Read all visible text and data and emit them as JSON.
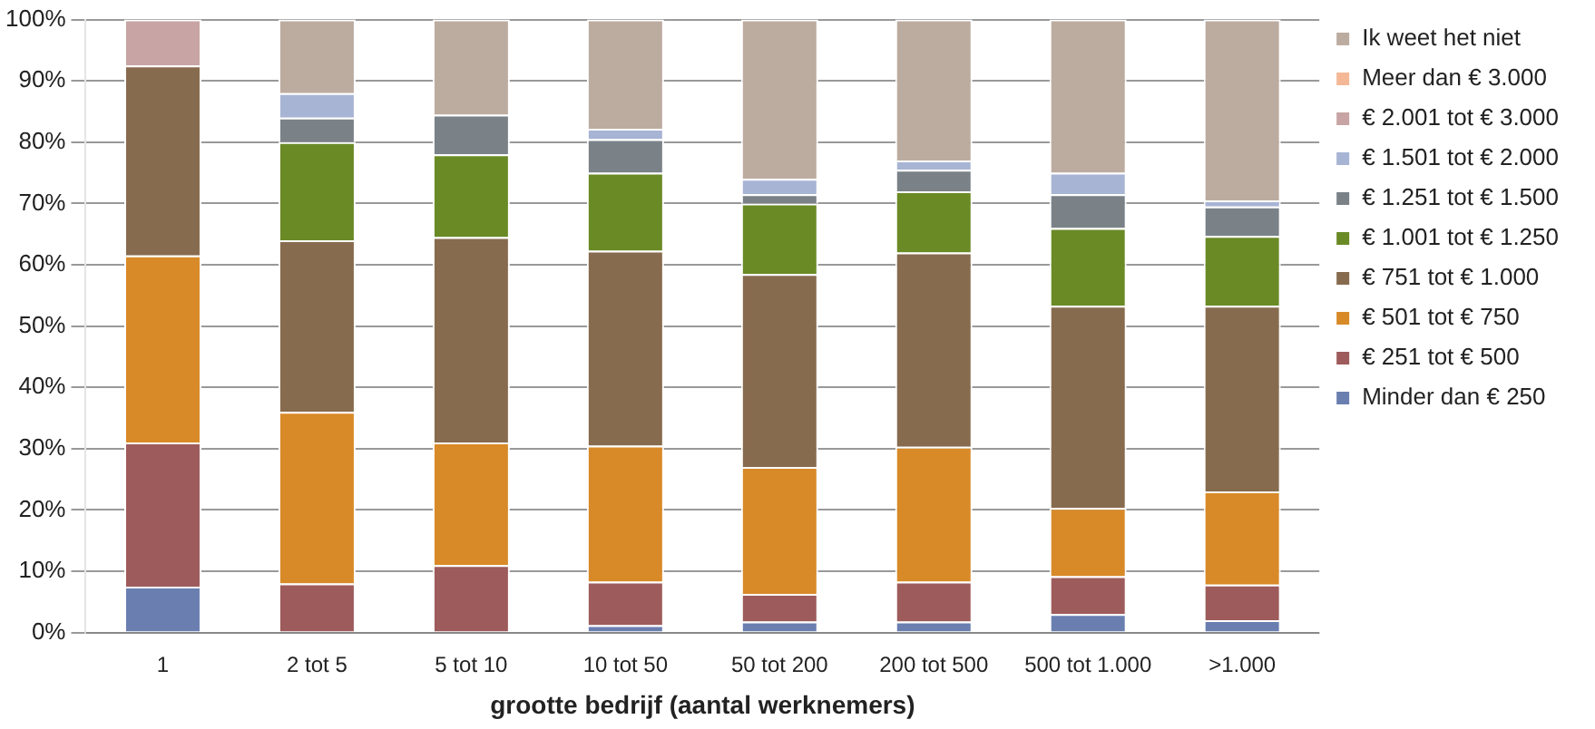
{
  "chart_data": {
    "type": "bar",
    "stacked": true,
    "xlabel": "grootte bedrijf (aantal werknemers)",
    "categories": [
      "1",
      "2 tot 5",
      "5 tot 10",
      "10 tot 50",
      "50 tot 200",
      "200 tot 500",
      "500 tot 1.000",
      ">1.000"
    ],
    "ylim": [
      0,
      100
    ],
    "yticks": [
      {
        "value": 0,
        "label": "0%"
      },
      {
        "value": 10,
        "label": "10%"
      },
      {
        "value": 20,
        "label": "20%"
      },
      {
        "value": 30,
        "label": "30%"
      },
      {
        "value": 40,
        "label": "40%"
      },
      {
        "value": 50,
        "label": "50%"
      },
      {
        "value": 60,
        "label": "60%"
      },
      {
        "value": 70,
        "label": "70%"
      },
      {
        "value": 80,
        "label": "80%"
      },
      {
        "value": 90,
        "label": "90%"
      },
      {
        "value": 100,
        "label": "100%"
      }
    ],
    "grid": "y",
    "legend": "right",
    "series": [
      {
        "name": "Minder dan € 250",
        "color": "#6a7fb0",
        "values": [
          7.5,
          0,
          0,
          1.2,
          1.8,
          1.8,
          3,
          2
        ]
      },
      {
        "name": "€ 251 tot € 500",
        "color": "#9e5b5b",
        "values": [
          23.5,
          8,
          11,
          7.1,
          4.5,
          6.5,
          6.2,
          5.8
        ]
      },
      {
        "name": "€ 501 tot € 750",
        "color": "#d88a28",
        "values": [
          30.5,
          28,
          20,
          22.2,
          20.7,
          22,
          11.1,
          15.2
        ]
      },
      {
        "name": "€ 751 tot € 1.000",
        "color": "#876b4e",
        "values": [
          31,
          28,
          33.5,
          31.8,
          31.5,
          31.7,
          33,
          30.3
        ]
      },
      {
        "name": "€ 1.001 tot € 1.250",
        "color": "#6a8a26",
        "values": [
          0,
          16,
          13.5,
          12.7,
          11.5,
          10,
          12.7,
          11.4
        ]
      },
      {
        "name": "€ 1.251 tot € 1.500",
        "color": "#7a8288",
        "values": [
          0,
          4,
          6.5,
          5.5,
          1.5,
          3.5,
          5.5,
          4.8
        ]
      },
      {
        "name": "€ 1.501 tot € 2.000",
        "color": "#a8b4d4",
        "values": [
          0,
          4,
          0,
          1.7,
          2.5,
          1.5,
          3.5,
          1
        ]
      },
      {
        "name": "€ 2.001 tot € 3.000",
        "color": "#c8a4a4",
        "values": [
          7.5,
          0,
          0,
          0,
          0,
          0,
          0,
          0
        ]
      },
      {
        "name": "Meer dan € 3.000",
        "color": "#f4b896",
        "values": [
          0,
          0,
          0,
          0,
          0,
          0,
          0,
          0
        ]
      },
      {
        "name": "Ik weet het niet",
        "color": "#bcaca0",
        "values": [
          0,
          12,
          15.5,
          17.8,
          26,
          23,
          25,
          29.5
        ]
      }
    ]
  }
}
